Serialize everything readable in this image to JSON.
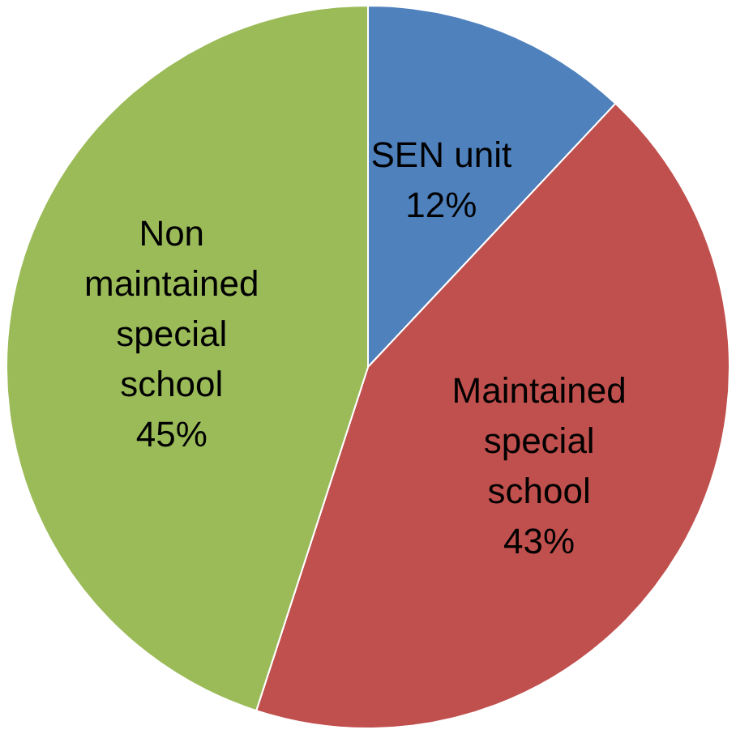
{
  "chart_data": {
    "type": "pie",
    "categories": [
      "SEN unit",
      "Maintained special school",
      "Non maintained special school"
    ],
    "values": [
      12,
      43,
      45
    ],
    "colors": [
      "#4f81bd",
      "#c0504d",
      "#9bbb59"
    ],
    "value_labels": [
      "12%",
      "43%",
      "45%"
    ],
    "legend": false
  }
}
